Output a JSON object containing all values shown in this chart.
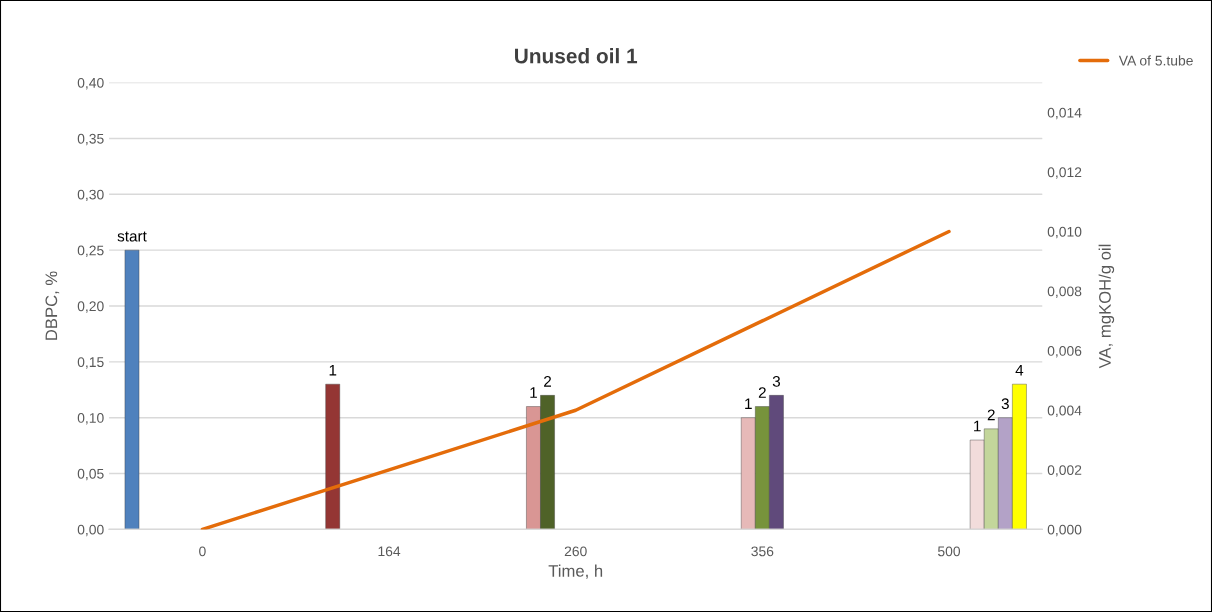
{
  "chart_data": {
    "type": "bar",
    "title": "Unused oil 1",
    "xlabel": "Time, h",
    "ylabel": "DBPC, %",
    "y2label": "VA, mgKOH/g oil",
    "categories": [
      "0",
      "164",
      "260",
      "356",
      "500"
    ],
    "series": [
      {
        "name": "start",
        "color": "#4f81bd",
        "values": [
          0.25,
          null,
          null,
          null,
          null
        ]
      },
      {
        "name": "1",
        "color": "#943634",
        "values": [
          null,
          0.13,
          null,
          null,
          null
        ]
      },
      {
        "name": "1",
        "color": "#d99694",
        "values": [
          null,
          null,
          0.11,
          null,
          null
        ]
      },
      {
        "name": "2",
        "color": "#4f6228",
        "values": [
          null,
          null,
          0.12,
          null,
          null
        ]
      },
      {
        "name": "1",
        "color": "#e6b9b8",
        "values": [
          null,
          null,
          null,
          0.1,
          null
        ]
      },
      {
        "name": "2",
        "color": "#77933c",
        "values": [
          null,
          null,
          null,
          0.11,
          null
        ]
      },
      {
        "name": "3",
        "color": "#604a7b",
        "values": [
          null,
          null,
          null,
          0.12,
          null
        ]
      },
      {
        "name": "1",
        "color": "#f2dcdb",
        "values": [
          null,
          null,
          null,
          null,
          0.08
        ]
      },
      {
        "name": "2",
        "color": "#c3d69b",
        "values": [
          null,
          null,
          null,
          null,
          0.09
        ]
      },
      {
        "name": "3",
        "color": "#b3a2c7",
        "values": [
          null,
          null,
          null,
          null,
          0.1
        ]
      },
      {
        "name": "4",
        "color": "#ffff00",
        "values": [
          null,
          null,
          null,
          null,
          0.13
        ]
      },
      {
        "type": "line",
        "axis": "y2",
        "name": "VA of 5.tube",
        "color": "#e46c0a",
        "values": [
          0,
          0.002,
          0.004,
          0.007,
          0.01
        ]
      }
    ],
    "ylim": [
      0,
      0.4
    ],
    "yticks": [
      {
        "value": 0,
        "label": "0,00"
      },
      {
        "value": 0.05,
        "label": "0,05"
      },
      {
        "value": 0.1,
        "label": "0,10"
      },
      {
        "value": 0.15,
        "label": "0,15"
      },
      {
        "value": 0.2,
        "label": "0,20"
      },
      {
        "value": 0.25,
        "label": "0,25"
      },
      {
        "value": 0.3,
        "label": "0,30"
      },
      {
        "value": 0.35,
        "label": "0,35"
      },
      {
        "value": 0.4,
        "label": "0,40"
      }
    ],
    "y2lim": [
      0,
      0.015
    ],
    "y2ticks": [
      {
        "value": 0,
        "label": "0,000"
      },
      {
        "value": 0.002,
        "label": "0,002"
      },
      {
        "value": 0.004,
        "label": "0,004"
      },
      {
        "value": 0.006,
        "label": "0,006"
      },
      {
        "value": 0.008,
        "label": "0,008"
      },
      {
        "value": 0.01,
        "label": "0,010"
      },
      {
        "value": 0.012,
        "label": "0,012"
      },
      {
        "value": 0.014,
        "label": "0,014"
      }
    ],
    "grid": "y",
    "legend": "top right"
  }
}
